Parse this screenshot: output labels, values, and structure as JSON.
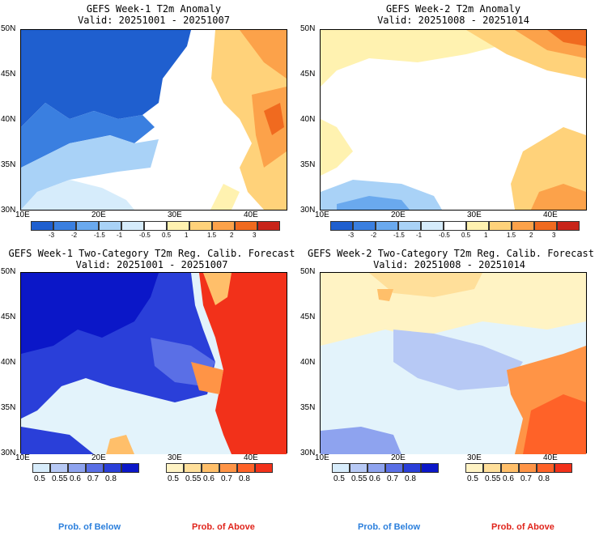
{
  "panels": [
    {
      "title": "GEFS Week-1 T2m Anomaly",
      "valid": "Valid: 20251001 - 20251007"
    },
    {
      "title": "GEFS Week-2 T2m Anomaly",
      "valid": "Valid: 20251008 - 20251014"
    },
    {
      "title": "GEFS Week-1 Two-Category T2m Reg. Calib. Forecast",
      "valid": "Valid: 20251001 - 20251007"
    },
    {
      "title": "GEFS Week-2 Two-Category T2m Reg. Calib. Forecast",
      "valid": "Valid: 20251008 - 20251014"
    }
  ],
  "lat_labels": [
    "50N",
    "45N",
    "40N",
    "35N",
    "30N"
  ],
  "lon_labels": [
    "10E",
    "20E",
    "30E",
    "40E"
  ],
  "anomaly_scale": {
    "ticks": [
      "-3",
      "-2",
      "-1.5",
      "-1",
      "-0.5",
      "0.5",
      "1",
      "1.5",
      "2",
      "3"
    ],
    "colors": [
      "#1f5fcf",
      "#3a7fe0",
      "#6aa9ee",
      "#a9d2f7",
      "#d6ecfb",
      "#ffffff",
      "#fff2b0",
      "#ffd27a",
      "#fca24a",
      "#f06a1f",
      "#c8241a"
    ]
  },
  "prob_below": {
    "ticks": [
      "0.5",
      "0.55",
      "0.6",
      "0.7",
      "0.8"
    ],
    "colors": [
      "#d7ecfb",
      "#b7c9f5",
      "#8ea3ef",
      "#5a6fe6",
      "#2a3fd9",
      "#0b17c8"
    ],
    "label": "Prob. of Below"
  },
  "prob_above": {
    "ticks": [
      "0.5",
      "0.55",
      "0.6",
      "0.7",
      "0.8"
    ],
    "colors": [
      "#fff3c4",
      "#ffdf9a",
      "#ffbf6a",
      "#ff9446",
      "#ff6228",
      "#f2311a"
    ],
    "label": "Prob. of Above"
  },
  "colors": {
    "land_base": "#ffffff",
    "sea_light": "#e3f3fb",
    "legend_below": "#2b7fdc",
    "legend_above": "#e0241b"
  }
}
